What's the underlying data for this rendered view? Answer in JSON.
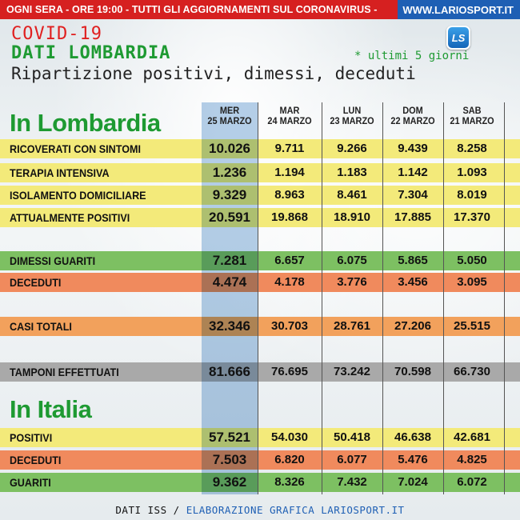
{
  "banner": {
    "text": "OGNI SERA - ORE 19:00 - TUTTI GLI AGGIORNAMENTI SUL CORONAVIRUS -",
    "site": "WWW.LARIOSPORT.IT"
  },
  "header": {
    "title_line1": "COVID-19",
    "title_line2": "DATI LOMBARDIA",
    "subtitle": "Ripartizione positivi, dimessi, deceduti",
    "note": "* ultimi 5 giorni",
    "logo_text": "LS"
  },
  "columns": [
    {
      "day": "MER",
      "date": "25 MARZO"
    },
    {
      "day": "MAR",
      "date": "24 MARZO"
    },
    {
      "day": "LUN",
      "date": "23 MARZO"
    },
    {
      "day": "DOM",
      "date": "22 MARZO"
    },
    {
      "day": "SAB",
      "date": "21 MARZO"
    }
  ],
  "sections": {
    "lombardia_title": "In Lombardia",
    "italia_title": "In Italia"
  },
  "rows": [
    {
      "label": "RICOVERATI CON SINTOMI",
      "values": [
        "10.026",
        "9.711",
        "9.266",
        "9.439",
        "8.258"
      ]
    },
    {
      "label": "TERAPIA INTENSIVA",
      "values": [
        "1.236",
        "1.194",
        "1.183",
        "1.142",
        "1.093"
      ]
    },
    {
      "label": "ISOLAMENTO DOMICILIARE",
      "values": [
        "9.329",
        "8.963",
        "8.461",
        "7.304",
        "8.019"
      ]
    },
    {
      "label": "ATTUALMENTE POSITIVI",
      "values": [
        "20.591",
        "19.868",
        "18.910",
        "17.885",
        "17.370"
      ]
    },
    {
      "label": "DIMESSI GUARITI",
      "values": [
        "7.281",
        "6.657",
        "6.075",
        "5.865",
        "5.050"
      ]
    },
    {
      "label": "DECEDUTI",
      "values": [
        "4.474",
        "4.178",
        "3.776",
        "3.456",
        "3.095"
      ]
    },
    {
      "label": "CASI TOTALI",
      "values": [
        "32.346",
        "30.703",
        "28.761",
        "27.206",
        "25.515"
      ]
    },
    {
      "label": "TAMPONI EFFETTUATI",
      "values": [
        "81.666",
        "76.695",
        "73.242",
        "70.598",
        "66.730"
      ]
    },
    {
      "label": "POSITIVI",
      "values": [
        "57.521",
        "54.030",
        "50.418",
        "46.638",
        "42.681"
      ]
    },
    {
      "label": "DECEDUTI",
      "values": [
        "7.503",
        "6.820",
        "6.077",
        "5.476",
        "4.825"
      ]
    },
    {
      "label": "GUARITI",
      "values": [
        "9.362",
        "8.326",
        "7.432",
        "7.024",
        "6.072"
      ]
    }
  ],
  "colors": {
    "yellow": "#f3ea7a",
    "green": "#7dc062",
    "orange": "#f08a5d",
    "orange_light": "#f2a15c",
    "gray": "#a9a9a9",
    "highlight_column": "#7aaad7",
    "title_red": "#e02020",
    "title_green": "#1e9a32"
  },
  "footer": {
    "source": "DATI ISS /",
    "credit": "ELABORAZIONE GRAFICA LARIOSPORT.IT"
  }
}
